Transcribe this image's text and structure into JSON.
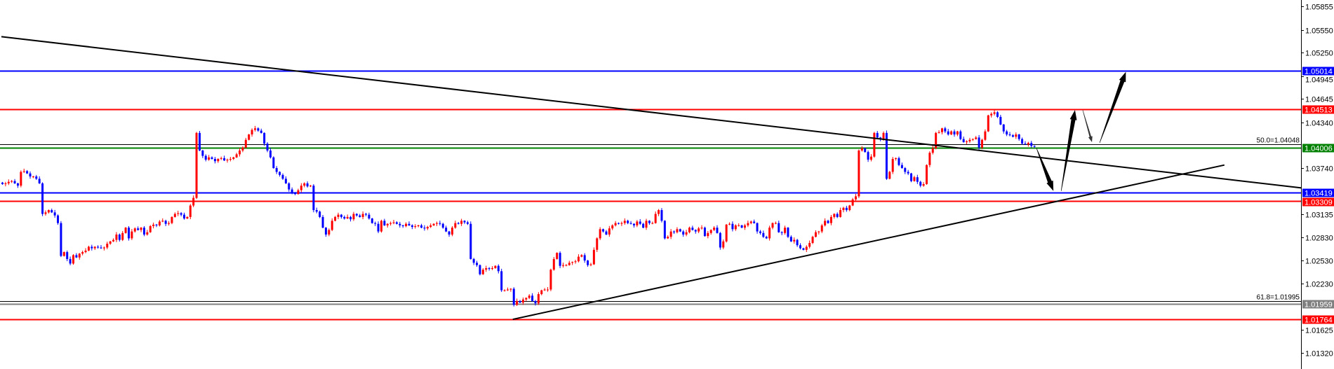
{
  "chart_data": {
    "type": "candlestick",
    "ylim": [
      1.0111,
      1.0594
    ],
    "grid": false,
    "colors": {
      "bull": "#ff0000",
      "bear": "#0000ff",
      "trendline": "#000000",
      "arrow": "#000000"
    },
    "y_ticks": [
      "1.05855",
      "1.05550",
      "1.05250",
      "1.04945",
      "1.04645",
      "1.04340",
      "1.03740",
      "1.03135",
      "1.02830",
      "1.02530",
      "1.02230",
      "1.01625",
      "1.01320"
    ],
    "close": [
      1.0353,
      1.0354,
      1.0356,
      1.0357,
      1.0354,
      1.0351,
      1.0369,
      1.037,
      1.0367,
      1.0363,
      1.0363,
      1.036,
      1.0354,
      1.0314,
      1.0316,
      1.0319,
      1.0316,
      1.0312,
      1.0302,
      1.0259,
      1.0264,
      1.0255,
      1.0249,
      1.026,
      1.0257,
      1.0262,
      1.0264,
      1.0266,
      1.0271,
      1.0269,
      1.0271,
      1.027,
      1.0269,
      1.027,
      1.0275,
      1.0278,
      1.028,
      1.0287,
      1.028,
      1.0289,
      1.0296,
      1.0282,
      1.0291,
      1.0295,
      1.0293,
      1.0296,
      1.0287,
      1.029,
      1.0298,
      1.03,
      1.0299,
      1.0304,
      1.0305,
      1.0301,
      1.0302,
      1.031,
      1.0314,
      1.0315,
      1.0313,
      1.0308,
      1.031,
      1.0325,
      1.0335,
      1.042,
      1.0397,
      1.039,
      1.0385,
      1.0388,
      1.0386,
      1.0383,
      1.0386,
      1.0387,
      1.0384,
      1.0385,
      1.0386,
      1.0388,
      1.0392,
      1.0397,
      1.0401,
      1.0411,
      1.0418,
      1.0424,
      1.0426,
      1.0423,
      1.042,
      1.0406,
      1.0397,
      1.0388,
      1.0374,
      1.0369,
      1.0365,
      1.036,
      1.0354,
      1.0346,
      1.0342,
      1.034,
      1.0345,
      1.0351,
      1.0354,
      1.035,
      1.0351,
      1.0319,
      1.0317,
      1.031,
      1.0296,
      1.0287,
      1.0293,
      1.0305,
      1.031,
      1.0313,
      1.031,
      1.0308,
      1.031,
      1.0307,
      1.0314,
      1.0312,
      1.031,
      1.0314,
      1.0313,
      1.0308,
      1.0302,
      1.0301,
      1.0291,
      1.0305,
      1.0299,
      1.0301,
      1.0302,
      1.0303,
      1.0301,
      1.0299,
      1.0298,
      1.0301,
      1.0299,
      1.0297,
      1.0298,
      1.0299,
      1.0296,
      1.0295,
      1.0297,
      1.0299,
      1.0301,
      1.0302,
      1.0301,
      1.0296,
      1.0291,
      1.0287,
      1.0296,
      1.0302,
      1.0301,
      1.0305,
      1.0303,
      1.0301,
      1.0255,
      1.025,
      1.0247,
      1.0235,
      1.0241,
      1.0243,
      1.0242,
      1.0243,
      1.0246,
      1.0239,
      1.0214,
      1.0214,
      1.0215,
      1.0216,
      1.0195,
      1.02,
      1.0198,
      1.0202,
      1.0204,
      1.0207,
      1.02,
      1.0197,
      1.0209,
      1.0214,
      1.0215,
      1.0215,
      1.0241,
      1.0255,
      1.0263,
      1.0246,
      1.0247,
      1.0247,
      1.025,
      1.0251,
      1.0252,
      1.0258,
      1.026,
      1.0253,
      1.0247,
      1.0248,
      1.0267,
      1.0282,
      1.0294,
      1.0291,
      1.0287,
      1.0295,
      1.0299,
      1.0302,
      1.0301,
      1.0302,
      1.0305,
      1.0302,
      1.0301,
      1.0299,
      1.0304,
      1.0301,
      1.0296,
      1.0305,
      1.0302,
      1.0302,
      1.0314,
      1.0319,
      1.0305,
      1.0282,
      1.0284,
      1.0291,
      1.029,
      1.0294,
      1.0291,
      1.0287,
      1.029,
      1.0296,
      1.0293,
      1.0291,
      1.0295,
      1.0296,
      1.0285,
      1.0289,
      1.0293,
      1.0296,
      1.0289,
      1.027,
      1.0278,
      1.03,
      1.0301,
      1.0294,
      1.0299,
      1.0299,
      1.0296,
      1.0299,
      1.0302,
      1.0304,
      1.0302,
      1.0291,
      1.0289,
      1.0284,
      1.0282,
      1.0296,
      1.0302,
      1.0302,
      1.029,
      1.0289,
      1.0296,
      1.0284,
      1.0278,
      1.028,
      1.0273,
      1.0269,
      1.0267,
      1.0271,
      1.0276,
      1.0284,
      1.029,
      1.0291,
      1.0299,
      1.0305,
      1.0302,
      1.031,
      1.0314,
      1.031,
      1.0319,
      1.0322,
      1.0319,
      1.0325,
      1.0333,
      1.0337,
      1.0397,
      1.04,
      1.0395,
      1.0385,
      1.0389,
      1.042,
      1.0414,
      1.0412,
      1.042,
      1.036,
      1.0369,
      1.0386,
      1.0387,
      1.0378,
      1.0374,
      1.0369,
      1.0367,
      1.0357,
      1.0362,
      1.0356,
      1.0351,
      1.0353,
      1.0378,
      1.0394,
      1.04,
      1.042,
      1.0421,
      1.0426,
      1.0422,
      1.0418,
      1.0422,
      1.0418,
      1.0422,
      1.0412,
      1.0408,
      1.0409,
      1.0411,
      1.0412,
      1.0414,
      1.0401,
      1.0411,
      1.0422,
      1.0443,
      1.0445,
      1.0447,
      1.0441,
      1.0431,
      1.0422,
      1.0418,
      1.0417,
      1.0415,
      1.0418,
      1.0412,
      1.0406,
      1.0405,
      1.0407,
      1.0403,
      1.0402
    ],
    "levels": [
      {
        "price": 1.05014,
        "label": "1.05014",
        "color": "#0000ff"
      },
      {
        "price": 1.04513,
        "label": "1.04513",
        "color": "#ff0000"
      },
      {
        "price": 1.04006,
        "label": "1.04006",
        "color": "#008000"
      },
      {
        "price": 1.03419,
        "label": "1.03419",
        "color": "#0000ff"
      },
      {
        "price": 1.03309,
        "label": "1.03309",
        "color": "#ff0000"
      },
      {
        "price": 1.01959,
        "label": "1.01959",
        "color": "#808080"
      },
      {
        "price": 1.01764,
        "label": "1.01764",
        "color": "#ff0000"
      }
    ],
    "fib_levels": [
      {
        "price": 1.04048,
        "label": "50.0=1.04048"
      },
      {
        "price": 1.01995,
        "label": "61.8=1.01995"
      }
    ],
    "trendlines": [
      {
        "from": {
          "bar": 0,
          "price": 1.0546
        },
        "to": {
          "bar": 422,
          "price": 1.0348
        }
      },
      {
        "from": {
          "bar": 166,
          "price": 1.0176
        },
        "to": {
          "bar": 397,
          "price": 1.0378
        }
      }
    ],
    "arrows": [
      {
        "from": {
          "bar": 336,
          "price": 1.04
        },
        "to": {
          "bar": 341.5,
          "price": 1.0344
        },
        "weight": "thick"
      },
      {
        "from": {
          "bar": 344,
          "price": 1.0344
        },
        "to": {
          "bar": 348.5,
          "price": 1.045
        },
        "weight": "thick"
      },
      {
        "from": {
          "bar": 351,
          "price": 1.045
        },
        "to": {
          "bar": 354,
          "price": 1.0408
        },
        "weight": "thin"
      },
      {
        "from": {
          "bar": 356.5,
          "price": 1.0407
        },
        "to": {
          "bar": 365,
          "price": 1.05
        },
        "weight": "thick"
      }
    ]
  }
}
